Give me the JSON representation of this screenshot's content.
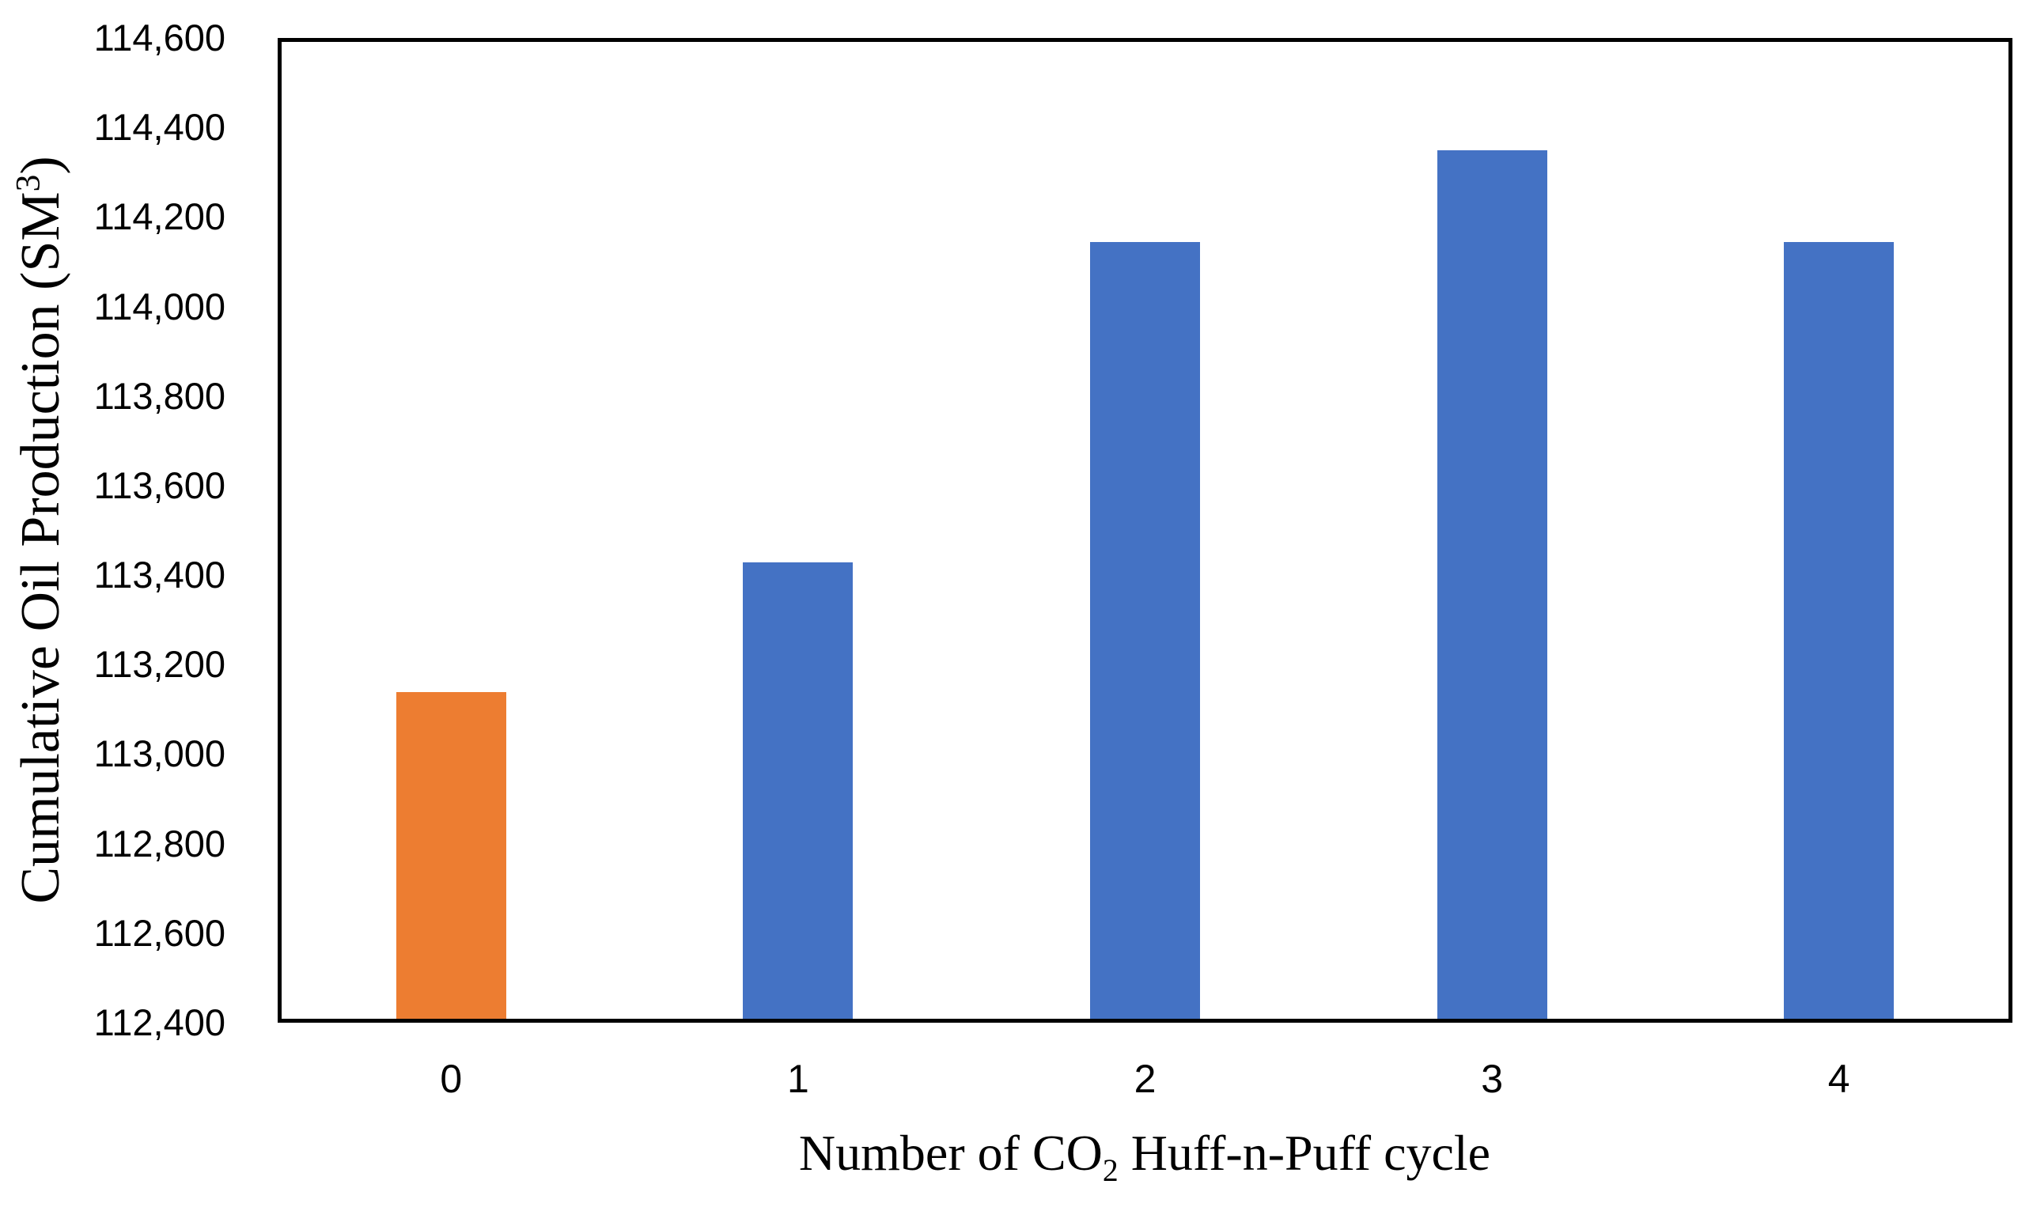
{
  "chart_data": {
    "type": "bar",
    "categories": [
      "0",
      "1",
      "2",
      "3",
      "4"
    ],
    "values": [
      113130,
      113420,
      114135,
      114340,
      114135
    ],
    "bar_colors": [
      "#ED7D31",
      "#4472C4",
      "#4472C4",
      "#4472C4",
      "#4472C4"
    ],
    "title": "",
    "xlabel": {
      "prefix": "Number of CO",
      "sub": "2",
      "suffix": " Huff-n-Puff cycle"
    },
    "ylabel": {
      "prefix": "Cumulative Oil Production (SM",
      "sup": "3",
      "suffix": ")"
    },
    "ylim": [
      112400,
      114600
    ],
    "ytick_step": 200,
    "ytick_labels": [
      "112,400",
      "112,600",
      "112,800",
      "113,000",
      "113,200",
      "113,400",
      "113,600",
      "113,800",
      "114,000",
      "114,200",
      "114,400",
      "114,600"
    ],
    "grid": "off",
    "legend": "none",
    "frame_color": "#000000",
    "background_color": "#FFFFFF",
    "accent_orange": "#ED7D31",
    "accent_blue": "#4472C4"
  }
}
